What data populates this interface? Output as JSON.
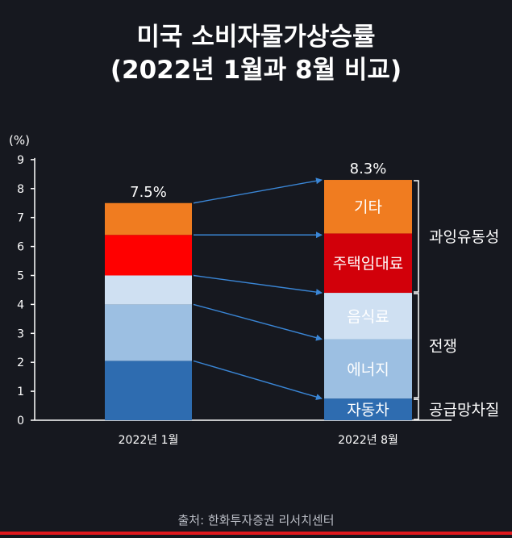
{
  "title_line1": "미국 소비자물가상승률",
  "title_line2": "(2022년 1월과 8월 비교)",
  "source": "출처: 한화투자증권 리서치센터",
  "chart_data": {
    "type": "bar",
    "stacked": true,
    "ylabel": "(%)",
    "ylim": [
      0,
      9
    ],
    "yticks": [
      "0",
      "1",
      "2",
      "3",
      "4",
      "5",
      "6",
      "7",
      "8",
      "9"
    ],
    "categories": [
      "2022년 1월",
      "2022년 8월"
    ],
    "totals": [
      "7.5%",
      "8.3%"
    ],
    "series": [
      {
        "name": "자동차",
        "values": [
          2.05,
          0.75
        ],
        "colors": [
          "#2e6cb0",
          "#2e6cb0"
        ],
        "show_label": [
          false,
          true
        ]
      },
      {
        "name": "에너지",
        "values": [
          1.95,
          2.05
        ],
        "colors": [
          "#9cbfe2",
          "#9cbfe2"
        ],
        "show_label": [
          false,
          true
        ]
      },
      {
        "name": "음식료",
        "values": [
          1.0,
          1.6
        ],
        "colors": [
          "#cfe0f2",
          "#cfe0f2"
        ],
        "show_label": [
          false,
          true
        ]
      },
      {
        "name": "주택임대료",
        "values": [
          1.4,
          2.05
        ],
        "colors": [
          "#ff0000",
          "#d2000a"
        ],
        "show_label": [
          false,
          true
        ]
      },
      {
        "name": "기타",
        "values": [
          1.1,
          1.85
        ],
        "colors": [
          "#f07c20",
          "#f07c20"
        ],
        "show_label": [
          false,
          true
        ]
      }
    ],
    "groups": [
      {
        "label": "과잉유동성",
        "from": 4.4,
        "to": 8.3
      },
      {
        "label": "전쟁",
        "from": 0.75,
        "to": 4.4
      },
      {
        "label": "공급망차질",
        "from": 0.0,
        "to": 0.75
      }
    ],
    "arrows": [
      {
        "from": 7.5,
        "to": 8.3
      },
      {
        "from": 6.4,
        "to": 6.4
      },
      {
        "from": 5.0,
        "to": 4.4
      },
      {
        "from": 4.0,
        "to": 2.8
      },
      {
        "from": 2.05,
        "to": 0.75
      }
    ],
    "colors": {
      "axis": "#ffffff",
      "arrow": "#3a86d6",
      "label_text": "#ffffff"
    }
  }
}
